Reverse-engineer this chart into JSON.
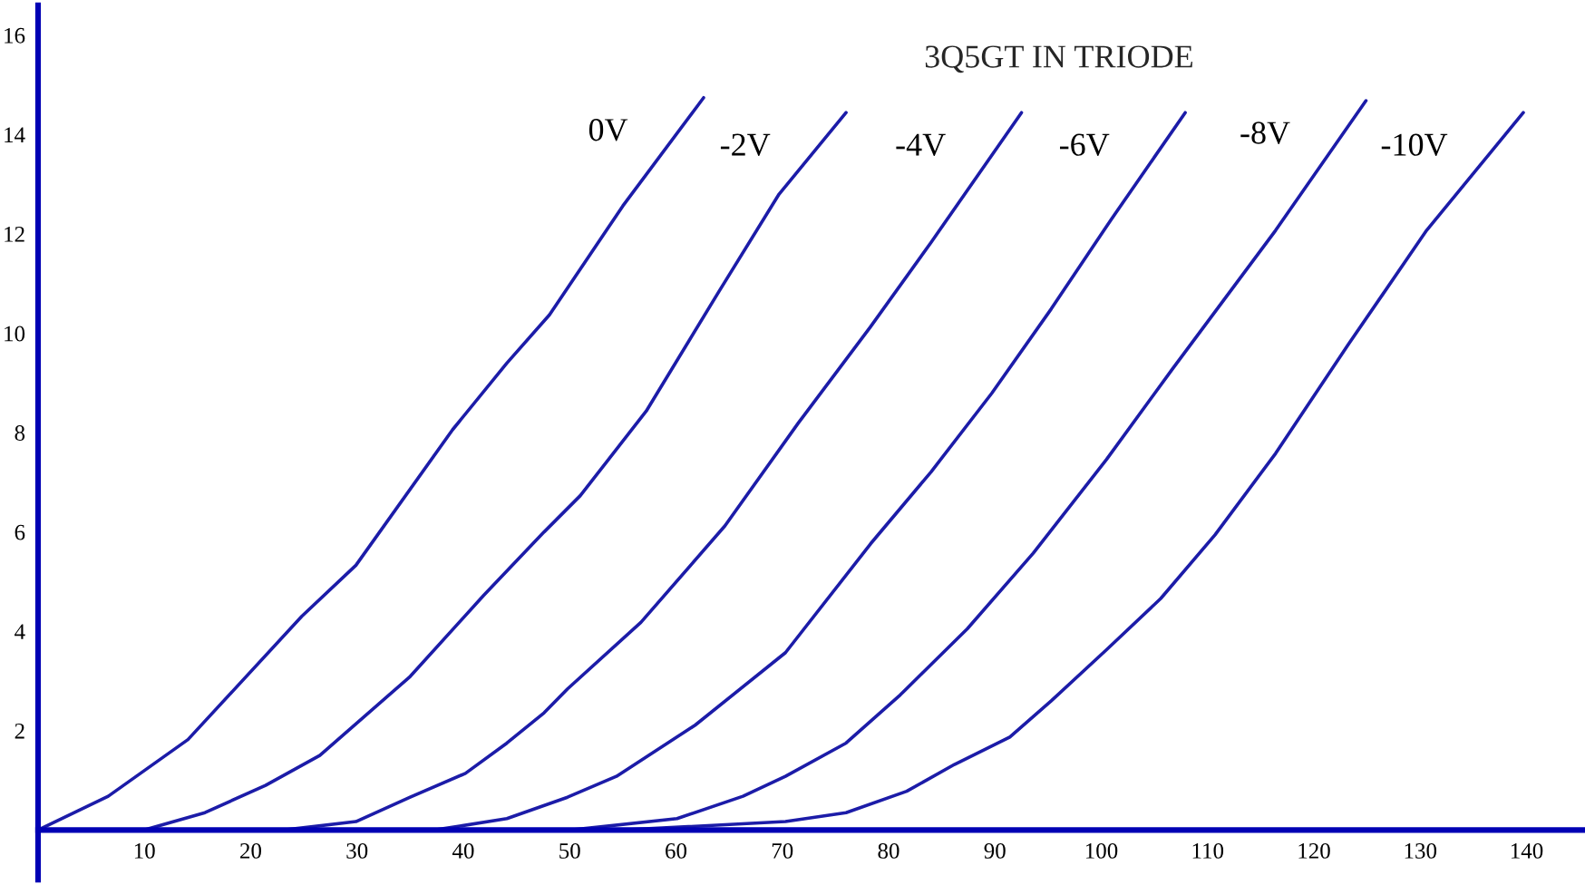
{
  "chart_data": {
    "type": "line",
    "title": "3Q5GT IN TRIODE",
    "xlim": [
      0,
      145.5
    ],
    "ylim": [
      -1,
      16.6
    ],
    "xticks": [
      10,
      20,
      30,
      40,
      50,
      60,
      70,
      80,
      90,
      100,
      110,
      120,
      130,
      140
    ],
    "yticks": [
      2,
      4,
      6,
      8,
      10,
      12,
      14,
      16
    ],
    "grid": false,
    "legend": false,
    "marker": "none",
    "line_style": "solid",
    "series": [
      {
        "name": "0V",
        "color": "#1c1ca8",
        "x": [
          0,
          6.6,
          14.1,
          24.8,
          29.9,
          39,
          44.1,
          48.1,
          55,
          62.6
        ],
        "values": [
          0,
          0.68,
          1.82,
          4.3,
          5.33,
          8.06,
          9.4,
          10.37,
          12.56,
          14.74
        ]
      },
      {
        "name": "-2V",
        "color": "#1c1ca8",
        "x": [
          10,
          15.7,
          21.4,
          26.5,
          35,
          41.9,
          47.6,
          51,
          57.2,
          64.1,
          69.7,
          76
        ],
        "values": [
          0,
          0.35,
          0.9,
          1.5,
          3.09,
          4.72,
          6.0,
          6.73,
          8.43,
          10.86,
          12.8,
          14.44
        ]
      },
      {
        "name": "-4V",
        "color": "#1c1ca8",
        "x": [
          23.1,
          29.9,
          35,
          40.2,
          44.1,
          47.6,
          49.8,
          56.7,
          64.6,
          71.5,
          78.3,
          84,
          92.5
        ],
        "values": [
          0,
          0.17,
          0.66,
          1.14,
          1.75,
          2.36,
          2.84,
          4.18,
          6.12,
          8.19,
          10.13,
          11.83,
          14.44
        ]
      },
      {
        "name": "-6V",
        "color": "#1c1ca8",
        "x": [
          37.3,
          44.1,
          49.8,
          54.4,
          61.8,
          70.3,
          78.3,
          84,
          89.7,
          95.3,
          101,
          107.9
        ],
        "values": [
          0,
          0.23,
          0.66,
          1.08,
          2.11,
          3.57,
          5.76,
          7.21,
          8.79,
          10.49,
          12.31,
          14.44
        ]
      },
      {
        "name": "-8V",
        "color": "#1c1ca8",
        "x": [
          50.1,
          60.1,
          66.3,
          70.3,
          76,
          81.1,
          87.4,
          93.6,
          100.5,
          106.7,
          116.4,
          124.9
        ],
        "values": [
          0,
          0.23,
          0.68,
          1.08,
          1.75,
          2.72,
          4.05,
          5.57,
          7.46,
          9.28,
          12.07,
          14.68
        ]
      },
      {
        "name": "-10V",
        "color": "#1c1ca8",
        "x": [
          55,
          70.3,
          76,
          81.7,
          86.2,
          91.4,
          95.3,
          100.5,
          105.6,
          110.7,
          116.4,
          123.2,
          130.6,
          139.7
        ],
        "values": [
          0,
          0.17,
          0.35,
          0.78,
          1.32,
          1.87,
          2.6,
          3.63,
          4.66,
          5.94,
          7.58,
          9.76,
          12.07,
          14.44
        ]
      }
    ]
  }
}
